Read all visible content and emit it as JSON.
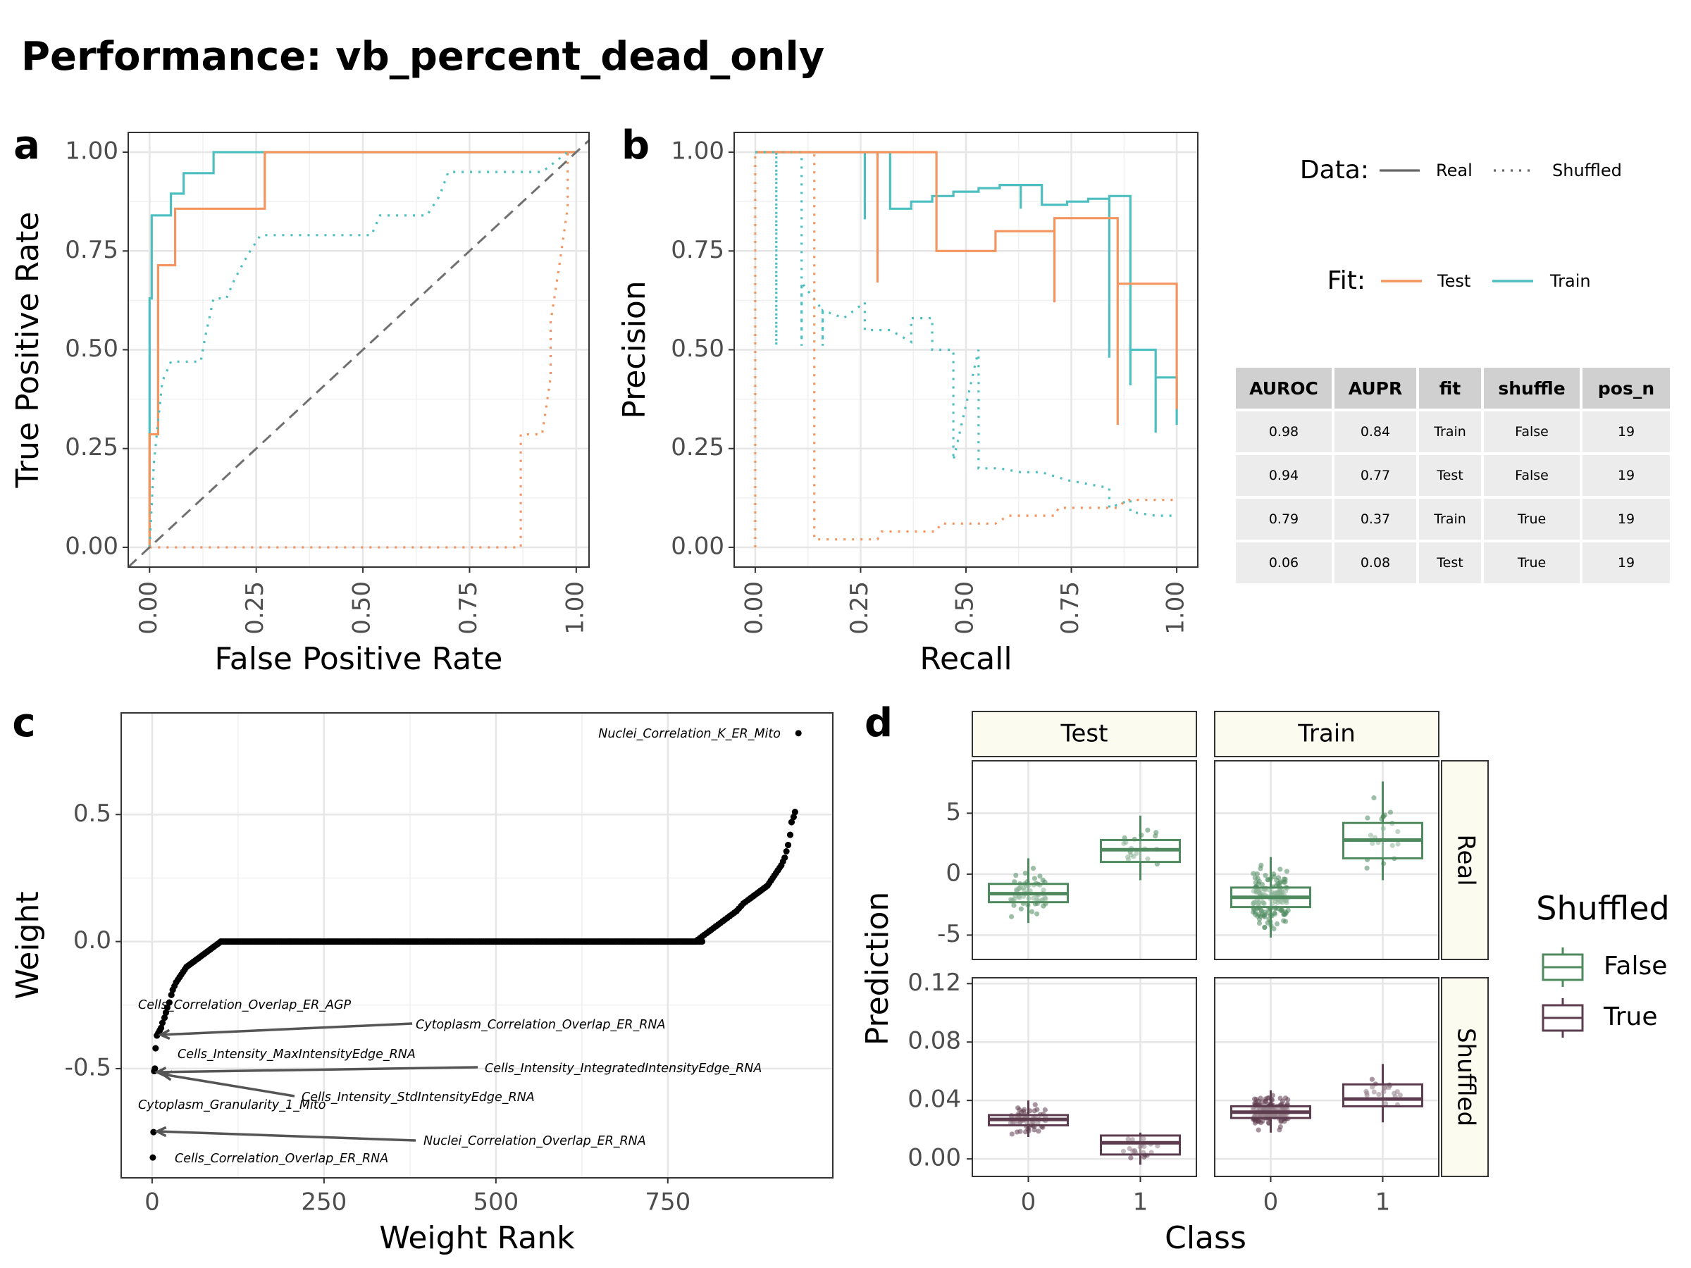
{
  "title": "Performance: vb_percent_dead_only",
  "colors": {
    "test": "#F4955F",
    "train": "#4DBFC0",
    "false_box": "#4E8A5E",
    "true_box": "#5E3C4F",
    "diag": "#707070",
    "strip_bg": "#FBFBF0"
  },
  "legend_top": {
    "data_title": "Data:",
    "data_items": [
      "Real",
      "Shuffled"
    ],
    "fit_title": "Fit:",
    "fit_items": [
      "Test",
      "Train"
    ]
  },
  "legend_d": {
    "title": "Shuffled",
    "items": [
      "False",
      "True"
    ]
  },
  "table": {
    "headers": [
      "AUROC",
      "AUPR",
      "fit",
      "shuffle",
      "pos_n"
    ],
    "rows": [
      [
        "0.98",
        "0.84",
        "Train",
        "False",
        "19"
      ],
      [
        "0.94",
        "0.77",
        "Test",
        "False",
        "19"
      ],
      [
        "0.79",
        "0.37",
        "Train",
        "True",
        "19"
      ],
      [
        "0.06",
        "0.08",
        "Test",
        "True",
        "19"
      ]
    ]
  },
  "chart_data": [
    {
      "panel": "a",
      "type": "line",
      "xlabel": "False Positive Rate",
      "ylabel": "True Positive Rate",
      "xlim": [
        0,
        1
      ],
      "ylim": [
        0,
        1
      ],
      "xticks": [
        "0.00",
        "0.25",
        "0.50",
        "0.75",
        "1.00"
      ],
      "yticks": [
        "0.00",
        "0.25",
        "0.50",
        "0.75",
        "1.00"
      ],
      "series": [
        {
          "name": "Train",
          "style": "Real",
          "color": "train",
          "x": [
            0,
            0,
            0.005,
            0.005,
            0.01,
            0.01,
            0.05,
            0.05,
            0.08,
            0.08,
            0.15,
            0.15,
            1.0
          ],
          "y": [
            0,
            0.63,
            0.63,
            0.84,
            0.84,
            0.84,
            0.84,
            0.895,
            0.895,
            0.947,
            0.947,
            1.0,
            1.0
          ]
        },
        {
          "name": "Test",
          "style": "Real",
          "color": "test",
          "x": [
            0,
            0,
            0.02,
            0.02,
            0.06,
            0.06,
            0.27,
            0.27,
            1.0
          ],
          "y": [
            0,
            0.286,
            0.286,
            0.714,
            0.714,
            0.857,
            0.857,
            1.0,
            1.0
          ]
        },
        {
          "name": "Train",
          "style": "Shuffled",
          "color": "train",
          "x": [
            0,
            0.01,
            0.02,
            0.03,
            0.05,
            0.12,
            0.13,
            0.15,
            0.18,
            0.2,
            0.23,
            0.26,
            0.3,
            0.52,
            0.54,
            0.56,
            0.65,
            0.68,
            0.7,
            0.82,
            0.85,
            0.86,
            0.92,
            0.98,
            1.0
          ],
          "y": [
            0,
            0.21,
            0.32,
            0.42,
            0.47,
            0.47,
            0.53,
            0.63,
            0.63,
            0.68,
            0.74,
            0.79,
            0.79,
            0.79,
            0.84,
            0.84,
            0.84,
            0.89,
            0.95,
            0.95,
            0.95,
            0.95,
            0.95,
            1.0,
            1.0
          ]
        },
        {
          "name": "Test",
          "style": "Shuffled",
          "color": "test",
          "x": [
            0,
            0.87,
            0.87,
            0.92,
            0.94,
            0.94,
            0.96,
            0.96,
            0.98,
            0.98,
            1.0
          ],
          "y": [
            0,
            0,
            0.286,
            0.286,
            0.43,
            0.57,
            0.71,
            0.71,
            0.86,
            1.0,
            1.0
          ]
        },
        {
          "name": "chance",
          "style": "diagonal",
          "color": "diag",
          "x": [
            -0.05,
            1.05
          ],
          "y": [
            -0.05,
            1.05
          ]
        }
      ]
    },
    {
      "panel": "b",
      "type": "line",
      "xlabel": "Recall",
      "ylabel": "Precision",
      "xlim": [
        0,
        1
      ],
      "ylim": [
        0,
        1
      ],
      "xticks": [
        "0.00",
        "0.25",
        "0.50",
        "0.75",
        "1.00"
      ],
      "yticks": [
        "0.00",
        "0.25",
        "0.50",
        "0.75",
        "1.00"
      ],
      "series": [
        {
          "name": "Train",
          "style": "Real",
          "color": "train",
          "x": [
            0,
            0.26,
            0.26,
            0.26,
            0.32,
            0.32,
            0.37,
            0.37,
            0.42,
            0.42,
            0.47,
            0.47,
            0.53,
            0.53,
            0.58,
            0.58,
            0.63,
            0.63,
            0.63,
            0.68,
            0.68,
            0.74,
            0.74,
            0.79,
            0.79,
            0.84,
            0.84,
            0.84,
            0.89,
            0.89,
            0.89,
            0.95,
            0.95,
            0.95,
            1.0,
            1.0
          ],
          "y": [
            1,
            1,
            0.83,
            1,
            1,
            0.857,
            0.857,
            0.875,
            0.875,
            0.889,
            0.889,
            0.9,
            0.9,
            0.909,
            0.909,
            0.917,
            0.917,
            0.857,
            0.917,
            0.917,
            0.867,
            0.867,
            0.875,
            0.875,
            0.882,
            0.882,
            0.48,
            0.889,
            0.889,
            0.41,
            0.5,
            0.5,
            0.29,
            0.43,
            0.43,
            0.31
          ]
        },
        {
          "name": "Test",
          "style": "Real",
          "color": "test",
          "x": [
            0,
            0.29,
            0.29,
            0.29,
            0.43,
            0.43,
            0.57,
            0.57,
            0.71,
            0.71,
            0.71,
            0.86,
            0.86,
            0.86,
            1.0,
            1.0
          ],
          "y": [
            1,
            1,
            0.67,
            1,
            1,
            0.75,
            0.75,
            0.8,
            0.8,
            0.62,
            0.833,
            0.833,
            0.31,
            0.667,
            0.667,
            0.35
          ]
        },
        {
          "name": "Train",
          "style": "Shuffled",
          "color": "train",
          "x": [
            0,
            0.05,
            0.05,
            0.05,
            0.11,
            0.11,
            0.11,
            0.16,
            0.16,
            0.16,
            0.21,
            0.26,
            0.26,
            0.32,
            0.37,
            0.37,
            0.42,
            0.42,
            0.47,
            0.47,
            0.53,
            0.53,
            0.58,
            0.63,
            0.68,
            0.74,
            0.79,
            0.84,
            0.84,
            0.89,
            0.89,
            0.95,
            1.0
          ],
          "y": [
            1,
            1,
            0.51,
            1,
            1,
            0.51,
            0.67,
            0.6,
            0.51,
            0.6,
            0.58,
            0.62,
            0.55,
            0.55,
            0.52,
            0.58,
            0.58,
            0.5,
            0.5,
            0.22,
            0.5,
            0.2,
            0.2,
            0.19,
            0.19,
            0.17,
            0.16,
            0.15,
            0.1,
            0.12,
            0.09,
            0.08,
            0.08
          ]
        },
        {
          "name": "Test",
          "style": "Shuffled",
          "color": "test",
          "x": [
            0,
            0,
            0.14,
            0.14,
            0.29,
            0.3,
            0.43,
            0.44,
            0.57,
            0.6,
            0.71,
            0.72,
            0.86,
            0.88,
            1.0
          ],
          "y": [
            0,
            1,
            1,
            0.02,
            0.02,
            0.04,
            0.04,
            0.06,
            0.06,
            0.08,
            0.08,
            0.1,
            0.1,
            0.12,
            0.12
          ]
        }
      ]
    },
    {
      "panel": "c",
      "type": "scatter",
      "xlabel": "Weight Rank",
      "ylabel": "Weight",
      "xlim": [
        -45,
        990
      ],
      "ylim": [
        -0.93,
        0.9
      ],
      "xticks": [
        "0",
        "250",
        "500",
        "750"
      ],
      "yticks": [
        "-0.5",
        "0.0",
        "0.5"
      ],
      "x": [
        940,
        935,
        933,
        930,
        928,
        925,
        920,
        915,
        910,
        905,
        900,
        895,
        890,
        885,
        880,
        875,
        870,
        860,
        850,
        840,
        830,
        820,
        810,
        800,
        790,
        700,
        600,
        500,
        400,
        300,
        200,
        100,
        95,
        90,
        85,
        80,
        75,
        70,
        65,
        60,
        55,
        50,
        45,
        40,
        35,
        30,
        28,
        25,
        22,
        20,
        18,
        15,
        13,
        11,
        9,
        7,
        5,
        4,
        3,
        2,
        1
      ],
      "y": [
        0.82,
        0.51,
        0.49,
        0.47,
        0.42,
        0.38,
        0.33,
        0.3,
        0.28,
        0.26,
        0.24,
        0.22,
        0.21,
        0.2,
        0.19,
        0.18,
        0.17,
        0.15,
        0.12,
        0.1,
        0.08,
        0.06,
        0.04,
        0.02,
        0.0,
        0.0,
        0.0,
        0.0,
        0.0,
        0.0,
        0.0,
        0.0,
        -0.01,
        -0.02,
        -0.03,
        -0.04,
        -0.05,
        -0.06,
        -0.07,
        -0.08,
        -0.09,
        -0.1,
        -0.12,
        -0.14,
        -0.16,
        -0.19,
        -0.21,
        -0.24,
        -0.26,
        -0.28,
        -0.3,
        -0.32,
        -0.34,
        -0.35,
        -0.36,
        -0.37,
        -0.42,
        -0.5,
        -0.51,
        -0.75,
        -0.85
      ],
      "annotations": [
        {
          "text": "Nuclei_Correlation_K_ER_Mito"
        },
        {
          "text": "Cells_Correlation_Overlap_ER_AGP"
        },
        {
          "text": "Cytoplasm_Correlation_Overlap_ER_RNA"
        },
        {
          "text": "Cells_Intensity_MaxIntensityEdge_RNA"
        },
        {
          "text": "Cells_Intensity_IntegratedIntensityEdge_RNA"
        },
        {
          "text": "Cells_Intensity_StdIntensityEdge_RNA"
        },
        {
          "text": "Cytoplasm_Granularity_1_Mito"
        },
        {
          "text": "Nuclei_Correlation_Overlap_ER_RNA"
        },
        {
          "text": "Cells_Correlation_Overlap_ER_RNA"
        }
      ]
    },
    {
      "panel": "d",
      "type": "box",
      "xlabel": "Class",
      "ylabel": "Prediction",
      "facet_cols": [
        "Test",
        "Train"
      ],
      "facet_rows": [
        "Real",
        "Shuffled"
      ],
      "xticks": [
        "0",
        "1"
      ],
      "row_ylims": {
        "Real": [
          -7,
          9.3
        ],
        "Shuffled": [
          -0.012,
          0.124
        ]
      },
      "row_yticks": {
        "Real": [
          "-5",
          "0",
          "5"
        ],
        "Shuffled": [
          "0.00",
          "0.04",
          "0.08",
          "0.12"
        ]
      },
      "boxes": [
        {
          "col": "Test",
          "row": "Real",
          "class": "0",
          "q1": -2.3,
          "median": -1.6,
          "q3": -0.8,
          "lo": -4.0,
          "hi": 1.3
        },
        {
          "col": "Test",
          "row": "Real",
          "class": "1",
          "q1": 1.0,
          "median": 2.0,
          "q3": 2.8,
          "lo": -0.5,
          "hi": 4.8
        },
        {
          "col": "Train",
          "row": "Real",
          "class": "0",
          "q1": -2.7,
          "median": -1.9,
          "q3": -1.1,
          "lo": -5.2,
          "hi": 1.4
        },
        {
          "col": "Train",
          "row": "Real",
          "class": "1",
          "q1": 1.3,
          "median": 2.8,
          "q3": 4.2,
          "lo": -0.5,
          "hi": 7.6
        },
        {
          "col": "Test",
          "row": "Shuffled",
          "class": "0",
          "q1": 0.023,
          "median": 0.027,
          "q3": 0.03,
          "lo": 0.015,
          "hi": 0.04
        },
        {
          "col": "Test",
          "row": "Shuffled",
          "class": "1",
          "q1": 0.003,
          "median": 0.011,
          "q3": 0.016,
          "lo": -0.004,
          "hi": 0.018
        },
        {
          "col": "Train",
          "row": "Shuffled",
          "class": "0",
          "q1": 0.028,
          "median": 0.032,
          "q3": 0.036,
          "lo": 0.018,
          "hi": 0.047
        },
        {
          "col": "Train",
          "row": "Shuffled",
          "class": "1",
          "q1": 0.036,
          "median": 0.041,
          "q3": 0.051,
          "lo": 0.025,
          "hi": 0.065
        }
      ]
    }
  ]
}
